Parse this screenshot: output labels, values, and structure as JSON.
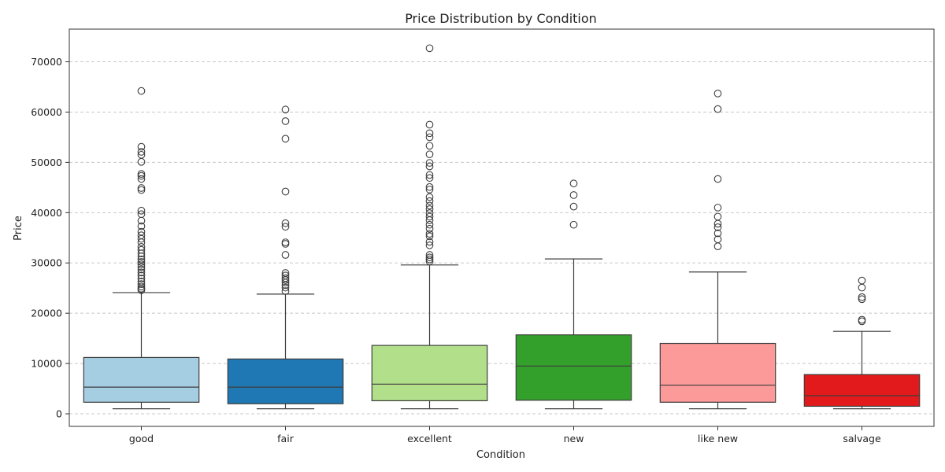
{
  "chart_data": {
    "type": "box",
    "title": "Price Distribution by Condition",
    "xlabel": "Condition",
    "ylabel": "Price",
    "ylim": [
      -2500,
      76500
    ],
    "yticks": [
      0,
      10000,
      20000,
      30000,
      40000,
      50000,
      60000,
      70000
    ],
    "grid": "y-dashed",
    "series": [
      {
        "name": "good",
        "color": "#a6cee3",
        "whisker_low": 1000,
        "q1": 2300,
        "median": 5300,
        "q3": 11200,
        "whisker_high": 24100,
        "outliers": [
          24600,
          24900,
          25300,
          25800,
          26300,
          26900,
          27500,
          28100,
          28700,
          29200,
          29700,
          30200,
          30700,
          31300,
          31900,
          32600,
          33200,
          34100,
          34800,
          35500,
          36200,
          37300,
          38400,
          39700,
          40400,
          44500,
          44900,
          46700,
          47300,
          47700,
          50100,
          51500,
          52100,
          53100,
          64200
        ]
      },
      {
        "name": "fair",
        "color": "#1f78b4",
        "whisker_low": 1000,
        "q1": 2000,
        "median": 5300,
        "q3": 10900,
        "whisker_high": 23800,
        "outliers": [
          24400,
          25100,
          25600,
          26100,
          26600,
          27000,
          27500,
          28000,
          31600,
          33800,
          34100,
          37200,
          37900,
          44200,
          54700,
          58200,
          60500
        ]
      },
      {
        "name": "excellent",
        "color": "#b2df8a",
        "whisker_low": 1000,
        "q1": 2600,
        "median": 5900,
        "q3": 13600,
        "whisker_high": 29600,
        "outliers": [
          30300,
          30700,
          31100,
          31600,
          33500,
          34200,
          35300,
          35800,
          36800,
          37600,
          38500,
          39200,
          39900,
          40700,
          41400,
          42300,
          43100,
          44600,
          45100,
          46900,
          47500,
          49200,
          49900,
          51600,
          53300,
          55000,
          55800,
          57500,
          72700
        ]
      },
      {
        "name": "new",
        "color": "#33a02c",
        "whisker_low": 1000,
        "q1": 2700,
        "median": 9500,
        "q3": 15700,
        "whisker_high": 30800,
        "outliers": [
          37600,
          41200,
          43500,
          45800
        ]
      },
      {
        "name": "like new",
        "color": "#fb9a99",
        "whisker_low": 1000,
        "q1": 2300,
        "median": 5700,
        "q3": 14000,
        "whisker_high": 28200,
        "outliers": [
          33300,
          34700,
          35900,
          37100,
          37800,
          39200,
          41000,
          46700,
          60600,
          63700
        ]
      },
      {
        "name": "salvage",
        "color": "#e31a1c",
        "whisker_low": 1000,
        "q1": 1500,
        "median": 3600,
        "q3": 7800,
        "whisker_high": 16400,
        "outliers": [
          18400,
          18700,
          22800,
          23200,
          25100,
          26500
        ]
      }
    ]
  }
}
